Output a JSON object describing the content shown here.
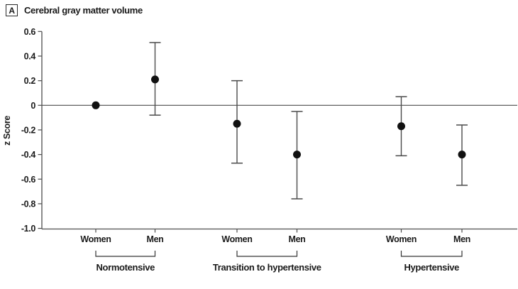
{
  "header": {
    "panel_label": "A",
    "title": "Cerebral gray matter volume"
  },
  "chart_data": {
    "type": "scatter",
    "subtype": "point-with-error-bars",
    "title": "Cerebral gray matter volume",
    "xlabel": "",
    "ylabel": "z Score",
    "ylim": [
      -1.0,
      0.6
    ],
    "yticks": [
      0.6,
      0.4,
      0.2,
      0,
      -0.2,
      -0.4,
      -0.6,
      -0.8,
      -1.0
    ],
    "zero_reference_line": true,
    "grid": false,
    "legend": false,
    "groups": [
      {
        "label": "Normotensive",
        "points": [
          {
            "sex": "Women",
            "z": 0.0,
            "ci": null
          },
          {
            "sex": "Men",
            "z": 0.21,
            "ci": [
              -0.08,
              0.51
            ]
          }
        ]
      },
      {
        "label": "Transition to hypertensive",
        "points": [
          {
            "sex": "Women",
            "z": -0.15,
            "ci": [
              -0.47,
              0.2
            ]
          },
          {
            "sex": "Men",
            "z": -0.4,
            "ci": [
              -0.76,
              -0.05
            ]
          }
        ]
      },
      {
        "label": "Hypertensive",
        "points": [
          {
            "sex": "Women",
            "z": -0.17,
            "ci": [
              -0.41,
              0.07
            ]
          },
          {
            "sex": "Men",
            "z": -0.4,
            "ci": [
              -0.65,
              -0.16
            ]
          }
        ]
      }
    ],
    "colors": {
      "point": "#111111",
      "axis": "#4d4d4d",
      "error_bar": "#4a4a4a",
      "text": "#1a1a1a"
    }
  }
}
